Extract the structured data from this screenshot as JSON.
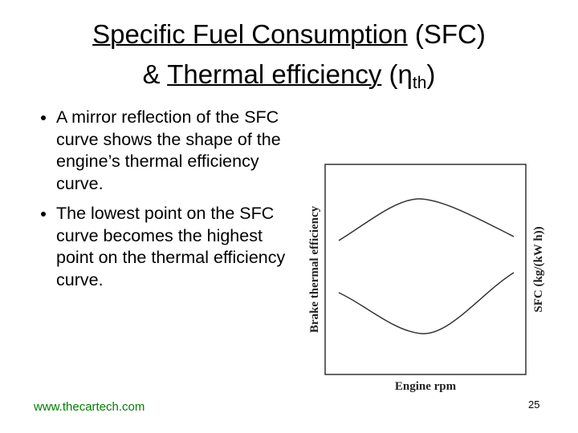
{
  "title": {
    "term1": "Specific Fuel Consumption",
    "abbr1": "(SFC)",
    "joiner": "&",
    "term2": "Thermal efficiency",
    "open": "(η",
    "subscript": "th",
    "close": ")"
  },
  "bullets": [
    "A mirror reflection of the SFC curve shows the shape of the engine’s thermal efficiency curve.",
    "The lowest point on the SFC curve becomes the highest point on the thermal efficiency curve."
  ],
  "figure": {
    "left_label": "Brake thermal efficiency",
    "right_label": "SFC (kg/(kW h))",
    "bottom_label": "Engine rpm"
  },
  "footer": {
    "website": "www.thecartech.com",
    "page_number": "25"
  }
}
